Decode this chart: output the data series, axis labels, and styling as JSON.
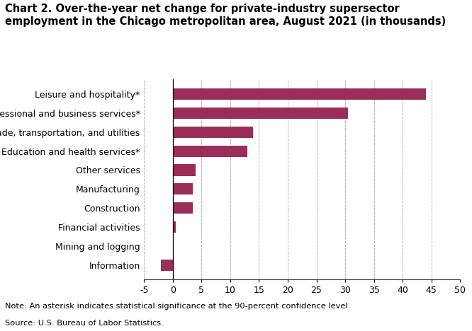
{
  "title_line1": "Chart 2. Over-the-year net change for private-industry supersector",
  "title_line2": "employment in the Chicago metropolitan area, August 2021 (in thousands)",
  "categories": [
    "Information",
    "Mining and logging",
    "Financial activities",
    "Construction",
    "Manufacturing",
    "Other services",
    "Education and health services*",
    "Trade, transportation, and utilities",
    "Professional and business services*",
    "Leisure and hospitality*"
  ],
  "values": [
    -2,
    0.1,
    0.5,
    3.5,
    3.5,
    4.0,
    13.0,
    14.0,
    30.5,
    44.0
  ],
  "bar_color": "#9b2d5a",
  "xlim": [
    -5,
    50
  ],
  "xticks": [
    -5,
    0,
    5,
    10,
    15,
    20,
    25,
    30,
    35,
    40,
    45,
    50
  ],
  "xtick_labels": [
    "-5",
    "0",
    "5",
    "10",
    "15",
    "20",
    "25",
    "30",
    "35",
    "40",
    "45",
    "50"
  ],
  "grid_color": "#b0b0b0",
  "note": "Note: An asterisk indicates statistical significance at the 90-percent confidence level.",
  "source": "Source: U.S. Bureau of Labor Statistics.",
  "bg_color": "#ffffff",
  "title_fontsize": 10.5,
  "tick_fontsize": 9.0,
  "label_fontsize": 9.0,
  "note_fontsize": 8.2
}
